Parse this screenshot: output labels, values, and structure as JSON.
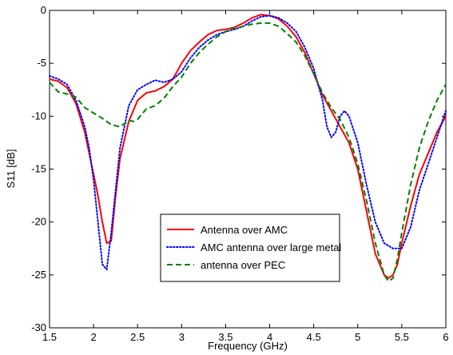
{
  "chart_data": {
    "type": "line",
    "title": "",
    "xlabel": "Frequency (GHz)",
    "ylabel": "S11 [dB]",
    "xlim": [
      1.5,
      6
    ],
    "ylim": [
      -30,
      0
    ],
    "xticks": [
      1.5,
      2,
      2.5,
      3,
      3.5,
      4,
      4.5,
      5,
      5.5,
      6
    ],
    "yticks": [
      0,
      -5,
      -10,
      -15,
      -20,
      -25,
      -30
    ],
    "xtick_labels": [
      "1.5",
      "2",
      "2.5",
      "3",
      "3.5",
      "4",
      "4.5",
      "5",
      "5.5",
      "6"
    ],
    "ytick_labels": [
      "0",
      "-5",
      "-10",
      "-15",
      "-20",
      "-25",
      "-30"
    ],
    "grid": false,
    "legend_position": "lower-center",
    "series": [
      {
        "name": "Antenna over AMC",
        "color": "#ff0000",
        "dash": "solid",
        "x": [
          1.5,
          1.6,
          1.7,
          1.8,
          1.9,
          2.0,
          2.05,
          2.1,
          2.15,
          2.2,
          2.25,
          2.3,
          2.4,
          2.5,
          2.6,
          2.7,
          2.8,
          2.9,
          3.0,
          3.1,
          3.2,
          3.3,
          3.4,
          3.5,
          3.6,
          3.7,
          3.8,
          3.9,
          4.0,
          4.1,
          4.2,
          4.3,
          4.4,
          4.5,
          4.6,
          4.7,
          4.8,
          4.9,
          5.0,
          5.1,
          5.2,
          5.3,
          5.35,
          5.4,
          5.45,
          5.5,
          5.6,
          5.7,
          5.8,
          5.9,
          6.0
        ],
        "y": [
          -6.5,
          -6.7,
          -7.3,
          -8.8,
          -11.5,
          -15.5,
          -17.5,
          -20.0,
          -22.0,
          -21.8,
          -17.5,
          -14.0,
          -10.5,
          -8.5,
          -7.8,
          -7.6,
          -7.2,
          -6.5,
          -5.0,
          -3.8,
          -3.0,
          -2.3,
          -1.9,
          -1.8,
          -1.6,
          -1.2,
          -0.7,
          -0.4,
          -0.5,
          -0.8,
          -1.5,
          -2.5,
          -4.0,
          -6.0,
          -8.0,
          -9.5,
          -11.0,
          -12.5,
          -15.0,
          -19.0,
          -23.0,
          -25.0,
          -25.3,
          -25.0,
          -24.0,
          -22.0,
          -18.5,
          -15.5,
          -13.5,
          -11.5,
          -10.0
        ]
      },
      {
        "name": "AMC antenna over large metal",
        "color": "#0000ff",
        "dash": "dotted",
        "x": [
          1.5,
          1.6,
          1.7,
          1.8,
          1.9,
          1.95,
          2.0,
          2.05,
          2.1,
          2.15,
          2.2,
          2.25,
          2.3,
          2.4,
          2.5,
          2.6,
          2.7,
          2.8,
          2.9,
          3.0,
          3.1,
          3.2,
          3.3,
          3.4,
          3.5,
          3.6,
          3.7,
          3.8,
          3.9,
          4.0,
          4.1,
          4.2,
          4.3,
          4.4,
          4.5,
          4.6,
          4.65,
          4.7,
          4.75,
          4.8,
          4.85,
          4.9,
          5.0,
          5.1,
          5.2,
          5.3,
          5.4,
          5.5,
          5.6,
          5.7,
          5.8,
          5.9,
          6.0
        ],
        "y": [
          -6.2,
          -6.5,
          -7.0,
          -8.5,
          -11.0,
          -13.0,
          -16.0,
          -20.0,
          -24.0,
          -24.5,
          -21.0,
          -17.0,
          -13.0,
          -9.0,
          -7.5,
          -7.0,
          -6.6,
          -6.8,
          -6.5,
          -5.8,
          -4.5,
          -3.5,
          -2.8,
          -2.3,
          -2.0,
          -1.8,
          -1.5,
          -1.0,
          -0.6,
          -0.5,
          -0.7,
          -1.2,
          -2.0,
          -3.5,
          -5.5,
          -8.5,
          -11.0,
          -12.0,
          -11.5,
          -10.0,
          -9.5,
          -10.0,
          -12.5,
          -16.5,
          -20.0,
          -22.0,
          -22.5,
          -22.5,
          -20.5,
          -17.0,
          -14.5,
          -12.0,
          -9.5
        ]
      },
      {
        "name": "antenna over PEC",
        "color": "#008000",
        "dash": "dashed",
        "x": [
          1.5,
          1.6,
          1.7,
          1.8,
          1.9,
          2.0,
          2.1,
          2.2,
          2.3,
          2.35,
          2.4,
          2.45,
          2.5,
          2.6,
          2.7,
          2.8,
          2.9,
          3.0,
          3.1,
          3.2,
          3.3,
          3.4,
          3.5,
          3.6,
          3.7,
          3.8,
          3.9,
          4.0,
          4.1,
          4.2,
          4.3,
          4.4,
          4.5,
          4.6,
          4.7,
          4.8,
          4.9,
          5.0,
          5.1,
          5.2,
          5.3,
          5.35,
          5.4,
          5.45,
          5.5,
          5.6,
          5.7,
          5.8,
          5.9,
          6.0
        ],
        "y": [
          -6.8,
          -7.7,
          -7.9,
          -8.2,
          -9.2,
          -9.7,
          -10.2,
          -10.8,
          -11.0,
          -10.7,
          -10.4,
          -10.5,
          -10.3,
          -9.3,
          -9.0,
          -8.3,
          -7.2,
          -6.3,
          -5.0,
          -4.0,
          -3.2,
          -2.5,
          -2.0,
          -1.7,
          -1.5,
          -1.3,
          -1.2,
          -1.2,
          -1.5,
          -2.2,
          -3.0,
          -4.3,
          -6.0,
          -7.8,
          -9.2,
          -10.3,
          -12.0,
          -14.5,
          -18.0,
          -22.0,
          -25.0,
          -25.6,
          -25.3,
          -23.5,
          -21.0,
          -16.5,
          -13.0,
          -10.5,
          -8.5,
          -7.0
        ]
      }
    ]
  }
}
